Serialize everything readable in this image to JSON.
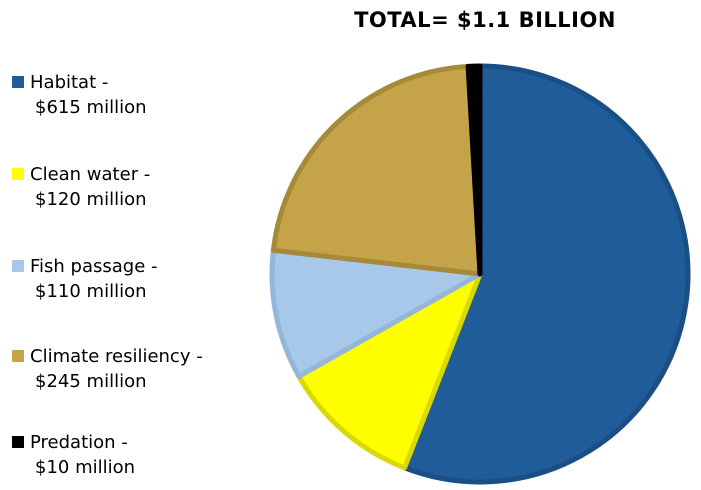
{
  "chart_data": {
    "type": "pie",
    "title": "TOTAL= $1.1 BILLION",
    "categories": [
      "Habitat",
      "Clean water",
      "Fish passage",
      "Climate resiliency",
      "Predation"
    ],
    "values": [
      615,
      120,
      110,
      245,
      10
    ],
    "unit": "million",
    "legend_labels": [
      {
        "name": "Habitat -",
        "value": "$615 million"
      },
      {
        "name": "Clean water -",
        "value": "$120 million"
      },
      {
        "name": "Fish passage -",
        "value": "$110 million"
      },
      {
        "name": "Climate resiliency -",
        "value": "$245 million"
      },
      {
        "name": "Predation -",
        "value": "$10 million"
      }
    ],
    "colors": [
      "#1F5C99",
      "#FFFF00",
      "#A8C8EA",
      "#C5A449",
      "#000000"
    ],
    "edge_colors": [
      "#1A4F86",
      "#D9D900",
      "#94B6DA",
      "#A68A39",
      "#000000"
    ],
    "start_angle_deg": 0,
    "direction": "clockwise",
    "legend_position": "left"
  }
}
